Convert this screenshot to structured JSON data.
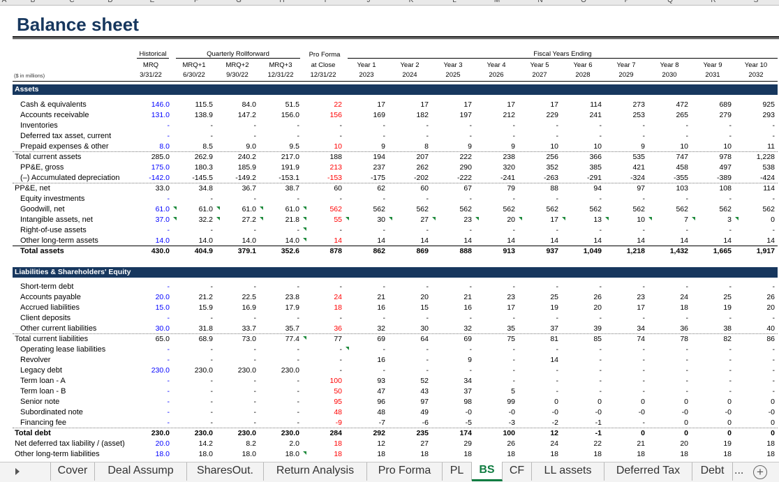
{
  "column_letters": [
    "A",
    "B",
    "C",
    "D",
    "E",
    "F",
    "G",
    "H",
    "I",
    "J",
    "K",
    "L",
    "M",
    "N",
    "O",
    "P",
    "Q",
    "R",
    "S"
  ],
  "title": "Balance sheet",
  "units_label": "($ in millions)",
  "group_headers": {
    "historical": "Historical",
    "quarterly": "Quarterly Rollforward",
    "pro_forma": "Pro Forma",
    "fiscal": "Fiscal Years Ending"
  },
  "column_headers": [
    [
      "MRQ",
      "3/31/22"
    ],
    [
      "MRQ+1",
      "6/30/22"
    ],
    [
      "MRQ+2",
      "9/30/22"
    ],
    [
      "MRQ+3",
      "12/31/22"
    ],
    [
      "at Close",
      "12/31/22"
    ],
    [
      "Year 1",
      "2023"
    ],
    [
      "Year 2",
      "2024"
    ],
    [
      "Year 3",
      "2025"
    ],
    [
      "Year 4",
      "2026"
    ],
    [
      "Year 5",
      "2027"
    ],
    [
      "Year 6",
      "2028"
    ],
    [
      "Year 7",
      "2029"
    ],
    [
      "Year 8",
      "2030"
    ],
    [
      "Year 9",
      "2031"
    ],
    [
      "Year 10",
      "2032"
    ]
  ],
  "sections": {
    "assets": "Assets",
    "liabilities": "Liabilities & Shareholders' Equity"
  },
  "colors": {
    "navy": "#17375e",
    "input_blue": "#0000ff",
    "proforma_red": "#ff0000",
    "tab_green": "#107c41",
    "comment_marker": "#1e8a3c"
  },
  "asset_rows": [
    {
      "label": "Cash & equivalents",
      "indent": 1,
      "values": [
        "146.0",
        "115.5",
        "84.0",
        "51.5",
        "22",
        "17",
        "17",
        "17",
        "17",
        "17",
        "114",
        "273",
        "472",
        "689",
        "925"
      ]
    },
    {
      "label": "Accounts receivable",
      "indent": 1,
      "values": [
        "131.0",
        "138.9",
        "147.2",
        "156.0",
        "156",
        "169",
        "182",
        "197",
        "212",
        "229",
        "241",
        "253",
        "265",
        "279",
        "293"
      ]
    },
    {
      "label": "Inventories",
      "indent": 1,
      "values": [
        "-",
        "-",
        "-",
        "-",
        "-",
        "-",
        "-",
        "-",
        "-",
        "-",
        "-",
        "-",
        "-",
        "-",
        "-"
      ]
    },
    {
      "label": "Deferred tax asset, current",
      "indent": 1,
      "values": [
        "-",
        "-",
        "-",
        "-",
        "-",
        "-",
        "-",
        "-",
        "-",
        "-",
        "-",
        "-",
        "-",
        "-",
        "-"
      ]
    },
    {
      "label": "Prepaid expenses & other",
      "indent": 1,
      "values": [
        "8.0",
        "8.5",
        "9.0",
        "9.5",
        "10",
        "9",
        "8",
        "9",
        "9",
        "10",
        "10",
        "9",
        "10",
        "10",
        "11"
      ]
    },
    {
      "label": "Total current assets",
      "indent": 0,
      "values": [
        "285.0",
        "262.9",
        "240.2",
        "217.0",
        "188",
        "194",
        "207",
        "222",
        "238",
        "256",
        "366",
        "535",
        "747",
        "978",
        "1,228"
      ]
    },
    {
      "label": "PP&E, gross",
      "indent": 1,
      "values": [
        "175.0",
        "180.3",
        "185.9",
        "191.9",
        "213",
        "237",
        "262",
        "290",
        "320",
        "352",
        "385",
        "421",
        "458",
        "497",
        "538"
      ]
    },
    {
      "label": "(–) Accumulated depreciation",
      "indent": 1,
      "values": [
        "-142.0",
        "-145.5",
        "-149.2",
        "-153.1",
        "-153",
        "-175",
        "-202",
        "-222",
        "-241",
        "-263",
        "-291",
        "-324",
        "-355",
        "-389",
        "-424"
      ]
    },
    {
      "label": "PP&E, net",
      "indent": 0,
      "values": [
        "33.0",
        "34.8",
        "36.7",
        "38.7",
        "60",
        "62",
        "60",
        "67",
        "79",
        "88",
        "94",
        "97",
        "103",
        "108",
        "114"
      ]
    },
    {
      "label": "Equity investments",
      "indent": 1,
      "values": [
        "-",
        "-",
        "-",
        "-",
        "-",
        "-",
        "-",
        "-",
        "-",
        "-",
        "-",
        "-",
        "-",
        "-",
        "-"
      ]
    },
    {
      "label": "Goodwill, net",
      "indent": 1,
      "values": [
        "61.0",
        "61.0",
        "61.0",
        "61.0",
        "562",
        "562",
        "562",
        "562",
        "562",
        "562",
        "562",
        "562",
        "562",
        "562",
        "562"
      ]
    },
    {
      "label": "Intangible assets, net",
      "indent": 1,
      "values": [
        "37.0",
        "32.2",
        "27.2",
        "21.8",
        "55",
        "30",
        "27",
        "23",
        "20",
        "17",
        "13",
        "10",
        "7",
        "3",
        "0"
      ]
    },
    {
      "label": "Right-of-use assets",
      "indent": 1,
      "values": [
        "-",
        "-",
        "-",
        "-",
        "-",
        "-",
        "-",
        "-",
        "-",
        "-",
        "-",
        "-",
        "-",
        "-",
        "-"
      ]
    },
    {
      "label": "Other long-term assets",
      "indent": 1,
      "values": [
        "14.0",
        "14.0",
        "14.0",
        "14.0",
        "14",
        "14",
        "14",
        "14",
        "14",
        "14",
        "14",
        "14",
        "14",
        "14",
        "14"
      ]
    },
    {
      "label": "Total assets",
      "indent": 1,
      "values": [
        "430.0",
        "404.9",
        "379.1",
        "352.6",
        "878",
        "862",
        "869",
        "888",
        "913",
        "937",
        "1,049",
        "1,218",
        "1,432",
        "1,665",
        "1,917"
      ]
    }
  ],
  "liability_rows": [
    {
      "label": "Short-term debt",
      "indent": 1,
      "values": [
        "-",
        "-",
        "-",
        "-",
        "-",
        "-",
        "-",
        "-",
        "-",
        "-",
        "-",
        "-",
        "-",
        "-",
        "-"
      ]
    },
    {
      "label": "Accounts payable",
      "indent": 1,
      "values": [
        "20.0",
        "21.2",
        "22.5",
        "23.8",
        "24",
        "21",
        "20",
        "21",
        "23",
        "25",
        "26",
        "23",
        "24",
        "25",
        "26"
      ]
    },
    {
      "label": "Accrued liabilities",
      "indent": 1,
      "values": [
        "15.0",
        "15.9",
        "16.9",
        "17.9",
        "18",
        "16",
        "15",
        "16",
        "17",
        "19",
        "20",
        "17",
        "18",
        "19",
        "20"
      ]
    },
    {
      "label": "Client deposits",
      "indent": 1,
      "values": [
        "-",
        "-",
        "-",
        "-",
        "-",
        "-",
        "-",
        "-",
        "-",
        "-",
        "-",
        "-",
        "-",
        "-",
        "-"
      ]
    },
    {
      "label": "Other current liabilities",
      "indent": 1,
      "values": [
        "30.0",
        "31.8",
        "33.7",
        "35.7",
        "36",
        "32",
        "30",
        "32",
        "35",
        "37",
        "39",
        "34",
        "36",
        "38",
        "40"
      ]
    },
    {
      "label": "Total current liabilities",
      "indent": 0,
      "values": [
        "65.0",
        "68.9",
        "73.0",
        "77.4",
        "77",
        "69",
        "64",
        "69",
        "75",
        "81",
        "85",
        "74",
        "78",
        "82",
        "86"
      ]
    },
    {
      "label": "Operating lease liabilities",
      "indent": 1,
      "values": [
        "-",
        "-",
        "-",
        "-",
        "-",
        "-",
        "-",
        "-",
        "-",
        "-",
        "-",
        "-",
        "-",
        "-",
        "-"
      ]
    },
    {
      "label": "Revolver",
      "indent": 1,
      "values": [
        "-",
        "-",
        "-",
        "-",
        "-",
        "16",
        "-",
        "9",
        "-",
        "14",
        "-",
        "-",
        "-",
        "-",
        "-"
      ]
    },
    {
      "label": "Legacy debt",
      "indent": 1,
      "values": [
        "230.0",
        "230.0",
        "230.0",
        "230.0",
        "-",
        "-",
        "-",
        "-",
        "-",
        "-",
        "-",
        "-",
        "-",
        "-",
        "-"
      ]
    },
    {
      "label": "Term loan - A",
      "indent": 1,
      "values": [
        "-",
        "-",
        "-",
        "-",
        "100",
        "93",
        "52",
        "34",
        "-",
        "-",
        "-",
        "-",
        "-",
        "-",
        "-"
      ]
    },
    {
      "label": "Term loan - B",
      "indent": 1,
      "values": [
        "-",
        "-",
        "-",
        "-",
        "50",
        "47",
        "43",
        "37",
        "5",
        "-",
        "-",
        "-",
        "-",
        "-",
        "-"
      ]
    },
    {
      "label": "Senior note",
      "indent": 1,
      "values": [
        "-",
        "-",
        "-",
        "-",
        "95",
        "96",
        "97",
        "98",
        "99",
        "0",
        "0",
        "0",
        "0",
        "0",
        "0"
      ]
    },
    {
      "label": "Subordinated note",
      "indent": 1,
      "values": [
        "-",
        "-",
        "-",
        "-",
        "48",
        "48",
        "49",
        "-0",
        "-0",
        "-0",
        "-0",
        "-0",
        "-0",
        "-0",
        "-0"
      ]
    },
    {
      "label": "Financing fee",
      "indent": 1,
      "values": [
        "-",
        "-",
        "-",
        "-",
        "-9",
        "-7",
        "-6",
        "-5",
        "-3",
        "-2",
        "-1",
        "-",
        "0",
        "0",
        "0"
      ]
    },
    {
      "label": "Total debt",
      "indent": 0,
      "values": [
        "230.0",
        "230.0",
        "230.0",
        "230.0",
        "284",
        "292",
        "235",
        "174",
        "100",
        "12",
        "-1",
        "0",
        "0",
        "0",
        "0"
      ]
    },
    {
      "label": "Net deferred tax liability / (asset)",
      "indent": 0,
      "values": [
        "20.0",
        "14.2",
        "8.2",
        "2.0",
        "18",
        "12",
        "27",
        "29",
        "26",
        "24",
        "22",
        "21",
        "20",
        "19",
        "18"
      ]
    },
    {
      "label": "Other long-term liabilities",
      "indent": 0,
      "values": [
        "18.0",
        "18.0",
        "18.0",
        "18.0",
        "18",
        "18",
        "18",
        "18",
        "18",
        "18",
        "18",
        "18",
        "18",
        "18",
        "18"
      ]
    }
  ],
  "sheet_tabs": [
    "Cover",
    "Deal Assump",
    "SharesOut.",
    "Return Analysis",
    "Pro Forma",
    "PL",
    "BS",
    "CF",
    "LL assets",
    "Deferred Tax",
    "Debt"
  ],
  "active_tab": "BS",
  "more_tabs": "...",
  "add_sheet": "+"
}
